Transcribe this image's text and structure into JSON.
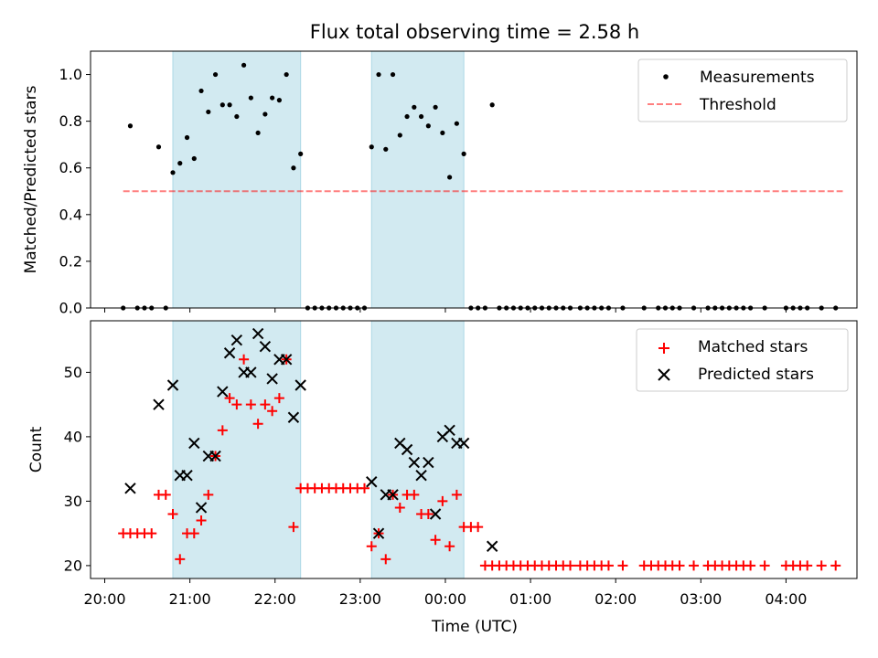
{
  "chart_data": {
    "title": "Flux total observing time = 2.58 h",
    "x_axis": {
      "label": "Time (UTC)",
      "range": [
        "19:50",
        "04:50"
      ],
      "ticks": [
        "20:00",
        "21:00",
        "22:00",
        "23:00",
        "00:00",
        "01:00",
        "02:00",
        "03:00",
        "04:00"
      ]
    },
    "shaded_intervals": [
      {
        "start": "20:48",
        "end": "22:18"
      },
      {
        "start": "23:08",
        "end": "00:13"
      }
    ],
    "colors": {
      "shade": "#add8e6",
      "measurements": "#000000",
      "threshold": "#ff0000",
      "matched": "#ff0000",
      "predicted": "#000000"
    },
    "panels": [
      {
        "type": "scatter",
        "ylabel": "Matched/Predicted stars",
        "ylim": [
          0,
          1.1
        ],
        "yticks": [
          "0.0",
          "0.2",
          "0.4",
          "0.6",
          "0.8",
          "1.0"
        ],
        "legend": {
          "position": "top-right",
          "entries": [
            "Measurements",
            "Threshold"
          ]
        },
        "threshold": {
          "value": 0.5,
          "x_start": "20:13",
          "x_end": "04:40"
        },
        "measurements": [
          {
            "t": "20:13",
            "v": 0.0
          },
          {
            "t": "20:18",
            "v": 0.78
          },
          {
            "t": "20:23",
            "v": 0.0
          },
          {
            "t": "20:28",
            "v": 0.0
          },
          {
            "t": "20:33",
            "v": 0.0
          },
          {
            "t": "20:38",
            "v": 0.69
          },
          {
            "t": "20:43",
            "v": 0.0
          },
          {
            "t": "20:48",
            "v": 0.58
          },
          {
            "t": "20:53",
            "v": 0.62
          },
          {
            "t": "20:58",
            "v": 0.73
          },
          {
            "t": "21:03",
            "v": 0.64
          },
          {
            "t": "21:08",
            "v": 0.93
          },
          {
            "t": "21:13",
            "v": 0.84
          },
          {
            "t": "21:18",
            "v": 1.0
          },
          {
            "t": "21:23",
            "v": 0.87
          },
          {
            "t": "21:28",
            "v": 0.87
          },
          {
            "t": "21:33",
            "v": 0.82
          },
          {
            "t": "21:38",
            "v": 1.04
          },
          {
            "t": "21:43",
            "v": 0.9
          },
          {
            "t": "21:48",
            "v": 0.75
          },
          {
            "t": "21:53",
            "v": 0.83
          },
          {
            "t": "21:58",
            "v": 0.9
          },
          {
            "t": "22:03",
            "v": 0.89
          },
          {
            "t": "22:08",
            "v": 1.0
          },
          {
            "t": "22:13",
            "v": 0.6
          },
          {
            "t": "22:18",
            "v": 0.66
          },
          {
            "t": "22:23",
            "v": 0.0
          },
          {
            "t": "22:28",
            "v": 0.0
          },
          {
            "t": "22:33",
            "v": 0.0
          },
          {
            "t": "22:38",
            "v": 0.0
          },
          {
            "t": "22:43",
            "v": 0.0
          },
          {
            "t": "22:48",
            "v": 0.0
          },
          {
            "t": "22:53",
            "v": 0.0
          },
          {
            "t": "22:58",
            "v": 0.0
          },
          {
            "t": "23:03",
            "v": 0.0
          },
          {
            "t": "23:08",
            "v": 0.69
          },
          {
            "t": "23:13",
            "v": 1.0
          },
          {
            "t": "23:18",
            "v": 0.68
          },
          {
            "t": "23:23",
            "v": 1.0
          },
          {
            "t": "23:28",
            "v": 0.74
          },
          {
            "t": "23:33",
            "v": 0.82
          },
          {
            "t": "23:38",
            "v": 0.86
          },
          {
            "t": "23:43",
            "v": 0.82
          },
          {
            "t": "23:48",
            "v": 0.78
          },
          {
            "t": "23:53",
            "v": 0.86
          },
          {
            "t": "23:58",
            "v": 0.75
          },
          {
            "t": "00:03",
            "v": 0.56
          },
          {
            "t": "00:08",
            "v": 0.79
          },
          {
            "t": "00:13",
            "v": 0.66
          },
          {
            "t": "00:18",
            "v": 0.0
          },
          {
            "t": "00:23",
            "v": 0.0
          },
          {
            "t": "00:28",
            "v": 0.0
          },
          {
            "t": "00:33",
            "v": 0.87
          },
          {
            "t": "00:38",
            "v": 0.0
          },
          {
            "t": "00:43",
            "v": 0.0
          },
          {
            "t": "00:48",
            "v": 0.0
          },
          {
            "t": "00:53",
            "v": 0.0
          },
          {
            "t": "00:58",
            "v": 0.0
          },
          {
            "t": "01:03",
            "v": 0.0
          },
          {
            "t": "01:08",
            "v": 0.0
          },
          {
            "t": "01:13",
            "v": 0.0
          },
          {
            "t": "01:18",
            "v": 0.0
          },
          {
            "t": "01:23",
            "v": 0.0
          },
          {
            "t": "01:28",
            "v": 0.0
          },
          {
            "t": "01:35",
            "v": 0.0
          },
          {
            "t": "01:40",
            "v": 0.0
          },
          {
            "t": "01:45",
            "v": 0.0
          },
          {
            "t": "01:50",
            "v": 0.0
          },
          {
            "t": "01:55",
            "v": 0.0
          },
          {
            "t": "02:05",
            "v": 0.0
          },
          {
            "t": "02:20",
            "v": 0.0
          },
          {
            "t": "02:30",
            "v": 0.0
          },
          {
            "t": "02:35",
            "v": 0.0
          },
          {
            "t": "02:40",
            "v": 0.0
          },
          {
            "t": "02:45",
            "v": 0.0
          },
          {
            "t": "02:55",
            "v": 0.0
          },
          {
            "t": "03:05",
            "v": 0.0
          },
          {
            "t": "03:10",
            "v": 0.0
          },
          {
            "t": "03:15",
            "v": 0.0
          },
          {
            "t": "03:20",
            "v": 0.0
          },
          {
            "t": "03:25",
            "v": 0.0
          },
          {
            "t": "03:30",
            "v": 0.0
          },
          {
            "t": "03:35",
            "v": 0.0
          },
          {
            "t": "03:45",
            "v": 0.0
          },
          {
            "t": "04:00",
            "v": 0.0
          },
          {
            "t": "04:05",
            "v": 0.0
          },
          {
            "t": "04:10",
            "v": 0.0
          },
          {
            "t": "04:15",
            "v": 0.0
          },
          {
            "t": "04:25",
            "v": 0.0
          },
          {
            "t": "04:35",
            "v": 0.0
          }
        ]
      },
      {
        "type": "scatter",
        "ylabel": "Count",
        "ylim": [
          18,
          58
        ],
        "yticks": [
          "20",
          "30",
          "40",
          "50"
        ],
        "legend": {
          "position": "top-right",
          "entries": [
            "Matched stars",
            "Predicted stars"
          ]
        },
        "matched": [
          {
            "t": "20:13",
            "v": 25
          },
          {
            "t": "20:18",
            "v": 25
          },
          {
            "t": "20:23",
            "v": 25
          },
          {
            "t": "20:28",
            "v": 25
          },
          {
            "t": "20:33",
            "v": 25
          },
          {
            "t": "20:38",
            "v": 31
          },
          {
            "t": "20:43",
            "v": 31
          },
          {
            "t": "20:48",
            "v": 28
          },
          {
            "t": "20:53",
            "v": 21
          },
          {
            "t": "20:58",
            "v": 25
          },
          {
            "t": "21:03",
            "v": 25
          },
          {
            "t": "21:08",
            "v": 27
          },
          {
            "t": "21:13",
            "v": 31
          },
          {
            "t": "21:18",
            "v": 37
          },
          {
            "t": "21:23",
            "v": 41
          },
          {
            "t": "21:28",
            "v": 46
          },
          {
            "t": "21:33",
            "v": 45
          },
          {
            "t": "21:38",
            "v": 52
          },
          {
            "t": "21:43",
            "v": 45
          },
          {
            "t": "21:48",
            "v": 42
          },
          {
            "t": "21:53",
            "v": 45
          },
          {
            "t": "21:58",
            "v": 44
          },
          {
            "t": "22:03",
            "v": 46
          },
          {
            "t": "22:08",
            "v": 52
          },
          {
            "t": "22:13",
            "v": 26
          },
          {
            "t": "22:18",
            "v": 32
          },
          {
            "t": "22:23",
            "v": 32
          },
          {
            "t": "22:28",
            "v": 32
          },
          {
            "t": "22:33",
            "v": 32
          },
          {
            "t": "22:38",
            "v": 32
          },
          {
            "t": "22:43",
            "v": 32
          },
          {
            "t": "22:48",
            "v": 32
          },
          {
            "t": "22:53",
            "v": 32
          },
          {
            "t": "22:58",
            "v": 32
          },
          {
            "t": "23:03",
            "v": 32
          },
          {
            "t": "23:08",
            "v": 23
          },
          {
            "t": "23:13",
            "v": 25
          },
          {
            "t": "23:18",
            "v": 21
          },
          {
            "t": "23:23",
            "v": 31
          },
          {
            "t": "23:28",
            "v": 29
          },
          {
            "t": "23:33",
            "v": 31
          },
          {
            "t": "23:38",
            "v": 31
          },
          {
            "t": "23:43",
            "v": 28
          },
          {
            "t": "23:48",
            "v": 28
          },
          {
            "t": "23:53",
            "v": 24
          },
          {
            "t": "23:58",
            "v": 30
          },
          {
            "t": "00:03",
            "v": 23
          },
          {
            "t": "00:08",
            "v": 31
          },
          {
            "t": "00:13",
            "v": 26
          },
          {
            "t": "00:18",
            "v": 26
          },
          {
            "t": "00:23",
            "v": 26
          },
          {
            "t": "00:28",
            "v": 20
          },
          {
            "t": "00:33",
            "v": 20
          },
          {
            "t": "00:38",
            "v": 20
          },
          {
            "t": "00:43",
            "v": 20
          },
          {
            "t": "00:48",
            "v": 20
          },
          {
            "t": "00:53",
            "v": 20
          },
          {
            "t": "00:58",
            "v": 20
          },
          {
            "t": "01:03",
            "v": 20
          },
          {
            "t": "01:08",
            "v": 20
          },
          {
            "t": "01:13",
            "v": 20
          },
          {
            "t": "01:18",
            "v": 20
          },
          {
            "t": "01:23",
            "v": 20
          },
          {
            "t": "01:28",
            "v": 20
          },
          {
            "t": "01:35",
            "v": 20
          },
          {
            "t": "01:40",
            "v": 20
          },
          {
            "t": "01:45",
            "v": 20
          },
          {
            "t": "01:50",
            "v": 20
          },
          {
            "t": "01:55",
            "v": 20
          },
          {
            "t": "02:05",
            "v": 20
          },
          {
            "t": "02:20",
            "v": 20
          },
          {
            "t": "02:25",
            "v": 20
          },
          {
            "t": "02:30",
            "v": 20
          },
          {
            "t": "02:35",
            "v": 20
          },
          {
            "t": "02:40",
            "v": 20
          },
          {
            "t": "02:45",
            "v": 20
          },
          {
            "t": "02:55",
            "v": 20
          },
          {
            "t": "03:05",
            "v": 20
          },
          {
            "t": "03:10",
            "v": 20
          },
          {
            "t": "03:15",
            "v": 20
          },
          {
            "t": "03:20",
            "v": 20
          },
          {
            "t": "03:25",
            "v": 20
          },
          {
            "t": "03:30",
            "v": 20
          },
          {
            "t": "03:35",
            "v": 20
          },
          {
            "t": "03:45",
            "v": 20
          },
          {
            "t": "04:00",
            "v": 20
          },
          {
            "t": "04:05",
            "v": 20
          },
          {
            "t": "04:10",
            "v": 20
          },
          {
            "t": "04:15",
            "v": 20
          },
          {
            "t": "04:25",
            "v": 20
          },
          {
            "t": "04:35",
            "v": 20
          }
        ],
        "predicted": [
          {
            "t": "20:18",
            "v": 32
          },
          {
            "t": "20:38",
            "v": 45
          },
          {
            "t": "20:48",
            "v": 48
          },
          {
            "t": "20:53",
            "v": 34
          },
          {
            "t": "20:58",
            "v": 34
          },
          {
            "t": "21:03",
            "v": 39
          },
          {
            "t": "21:08",
            "v": 29
          },
          {
            "t": "21:13",
            "v": 37
          },
          {
            "t": "21:18",
            "v": 37
          },
          {
            "t": "21:23",
            "v": 47
          },
          {
            "t": "21:28",
            "v": 53
          },
          {
            "t": "21:33",
            "v": 55
          },
          {
            "t": "21:38",
            "v": 50
          },
          {
            "t": "21:43",
            "v": 50
          },
          {
            "t": "21:48",
            "v": 56
          },
          {
            "t": "21:53",
            "v": 54
          },
          {
            "t": "21:58",
            "v": 49
          },
          {
            "t": "22:03",
            "v": 52
          },
          {
            "t": "22:08",
            "v": 52
          },
          {
            "t": "22:13",
            "v": 43
          },
          {
            "t": "22:18",
            "v": 48
          },
          {
            "t": "23:08",
            "v": 33
          },
          {
            "t": "23:13",
            "v": 25
          },
          {
            "t": "23:18",
            "v": 31
          },
          {
            "t": "23:23",
            "v": 31
          },
          {
            "t": "23:28",
            "v": 39
          },
          {
            "t": "23:33",
            "v": 38
          },
          {
            "t": "23:38",
            "v": 36
          },
          {
            "t": "23:43",
            "v": 34
          },
          {
            "t": "23:48",
            "v": 36
          },
          {
            "t": "23:53",
            "v": 28
          },
          {
            "t": "23:58",
            "v": 40
          },
          {
            "t": "00:03",
            "v": 41
          },
          {
            "t": "00:08",
            "v": 39
          },
          {
            "t": "00:13",
            "v": 39
          },
          {
            "t": "00:33",
            "v": 23
          }
        ]
      }
    ]
  }
}
